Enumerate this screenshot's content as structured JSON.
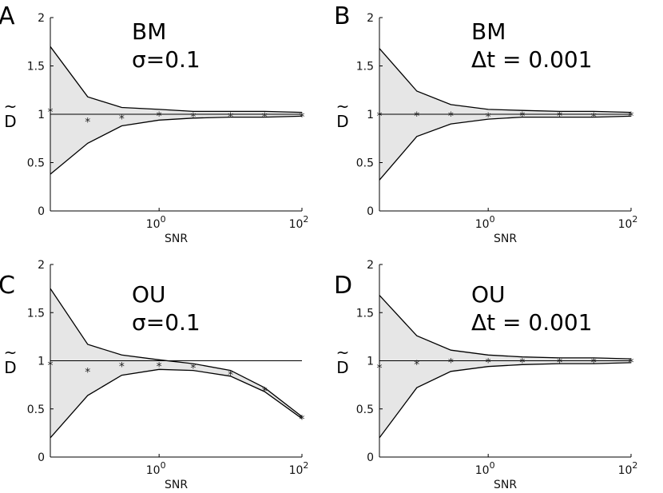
{
  "chart_data": [
    {
      "panel": "A",
      "type": "line",
      "annotation": [
        "BM",
        "σ=0.1"
      ],
      "xlabel": "SNR",
      "ylabel": "D",
      "ylabel_accent": "~",
      "xscale": "log",
      "ylim": [
        0,
        2
      ],
      "yticks": [
        "0",
        "0.5",
        "1",
        "1.5",
        "2"
      ],
      "xticks": [
        {
          "base": "10",
          "exp": "0"
        },
        {
          "base": "10",
          "exp": "2"
        }
      ],
      "reference_line": 1,
      "snr": [
        0.03,
        0.1,
        0.3,
        1,
        3,
        10,
        30,
        100
      ],
      "upper": [
        1.7,
        1.18,
        1.07,
        1.05,
        1.03,
        1.03,
        1.03,
        1.02
      ],
      "lower": [
        0.38,
        0.7,
        0.88,
        0.94,
        0.96,
        0.97,
        0.97,
        0.98
      ],
      "estimate": [
        1.04,
        0.94,
        0.97,
        1.0,
        0.99,
        0.99,
        0.99,
        0.99
      ]
    },
    {
      "panel": "B",
      "type": "line",
      "annotation": [
        "BM",
        "Δt = 0.001"
      ],
      "xlabel": "SNR",
      "ylabel": "D",
      "ylabel_accent": "~",
      "xscale": "log",
      "ylim": [
        0,
        2
      ],
      "yticks": [
        "0",
        "0.5",
        "1",
        "1.5",
        "2"
      ],
      "xticks": [
        {
          "base": "10",
          "exp": "0"
        },
        {
          "base": "10",
          "exp": "2"
        }
      ],
      "reference_line": 1,
      "snr": [
        0.03,
        0.1,
        0.3,
        1,
        3,
        10,
        30,
        100
      ],
      "upper": [
        1.68,
        1.24,
        1.1,
        1.05,
        1.04,
        1.03,
        1.03,
        1.02
      ],
      "lower": [
        0.32,
        0.77,
        0.9,
        0.95,
        0.97,
        0.97,
        0.97,
        0.98
      ],
      "estimate": [
        1.0,
        1.0,
        1.0,
        0.99,
        1.0,
        1.0,
        0.99,
        1.0
      ]
    },
    {
      "panel": "C",
      "type": "line",
      "annotation": [
        "OU",
        "σ=0.1"
      ],
      "xlabel": "SNR",
      "ylabel": "D",
      "ylabel_accent": "~",
      "xscale": "log",
      "ylim": [
        0,
        2
      ],
      "yticks": [
        "0",
        "0.5",
        "1",
        "1.5",
        "2"
      ],
      "xticks": [
        {
          "base": "10",
          "exp": "0"
        },
        {
          "base": "10",
          "exp": "2"
        }
      ],
      "reference_line": 1,
      "snr": [
        0.03,
        0.1,
        0.3,
        1,
        3,
        10,
        30,
        100
      ],
      "upper": [
        1.75,
        1.17,
        1.06,
        1.01,
        0.97,
        0.9,
        0.72,
        0.42
      ],
      "lower": [
        0.2,
        0.64,
        0.85,
        0.91,
        0.9,
        0.84,
        0.68,
        0.4
      ],
      "estimate": [
        0.97,
        0.9,
        0.96,
        0.96,
        0.94,
        0.87,
        0.7,
        0.41
      ]
    },
    {
      "panel": "D",
      "type": "line",
      "annotation": [
        "OU",
        "Δt = 0.001"
      ],
      "xlabel": "SNR",
      "ylabel": "D",
      "ylabel_accent": "~",
      "xscale": "log",
      "ylim": [
        0,
        2
      ],
      "yticks": [
        "0",
        "0.5",
        "1",
        "1.5",
        "2"
      ],
      "xticks": [
        {
          "base": "10",
          "exp": "0"
        },
        {
          "base": "10",
          "exp": "2"
        }
      ],
      "reference_line": 1,
      "snr": [
        0.03,
        0.1,
        0.3,
        1,
        3,
        10,
        30,
        100
      ],
      "upper": [
        1.68,
        1.26,
        1.11,
        1.06,
        1.04,
        1.03,
        1.03,
        1.02
      ],
      "lower": [
        0.2,
        0.72,
        0.89,
        0.94,
        0.96,
        0.97,
        0.97,
        0.98
      ],
      "estimate": [
        0.94,
        0.98,
        1.0,
        1.0,
        1.0,
        1.0,
        1.0,
        1.0
      ]
    }
  ]
}
